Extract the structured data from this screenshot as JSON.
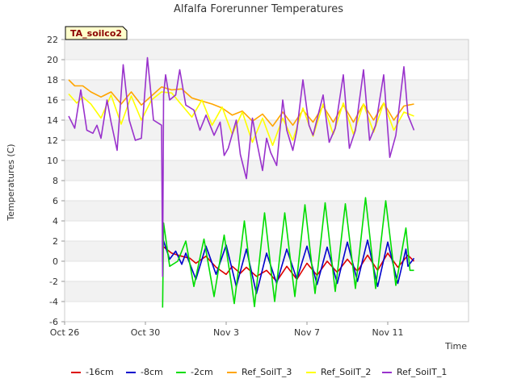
{
  "chart_data": {
    "type": "line",
    "title": "Alfalfa Forerunner Temperatures",
    "badge": "TA_soilco2",
    "xlabel": "Time",
    "ylabel": "Temperatures (C)",
    "ylim": [
      -6,
      22
    ],
    "yticks": [
      -6,
      -4,
      -2,
      0,
      2,
      4,
      6,
      8,
      10,
      12,
      14,
      16,
      18,
      20,
      22
    ],
    "xlim": [
      0,
      20
    ],
    "xticks": [
      {
        "x": 0,
        "label": "Oct 26"
      },
      {
        "x": 4,
        "label": "Oct 30"
      },
      {
        "x": 8,
        "label": "Nov 3"
      },
      {
        "x": 12,
        "label": "Nov 7"
      },
      {
        "x": 16,
        "label": "Nov 11"
      }
    ],
    "grid": "horizontal bands",
    "legend_position": "bottom",
    "series": [
      {
        "name": "-16cm",
        "color": "#dd0000",
        "start": 4.85,
        "end": 17.3,
        "points": [
          [
            4.85,
            1.5
          ],
          [
            5.3,
            0.8
          ],
          [
            5.8,
            0.5
          ],
          [
            6.2,
            0.3
          ],
          [
            6.5,
            -0.2
          ],
          [
            7.0,
            0.5
          ],
          [
            7.5,
            -0.6
          ],
          [
            8.0,
            -1.3
          ],
          [
            8.3,
            -0.5
          ],
          [
            8.7,
            -1.2
          ],
          [
            9.0,
            -0.6
          ],
          [
            9.5,
            -1.5
          ],
          [
            10.0,
            -0.9
          ],
          [
            10.5,
            -2.0
          ],
          [
            11.0,
            -0.5
          ],
          [
            11.5,
            -1.8
          ],
          [
            12.0,
            -0.2
          ],
          [
            12.5,
            -1.4
          ],
          [
            13.0,
            0.0
          ],
          [
            13.5,
            -1.1
          ],
          [
            14.0,
            0.2
          ],
          [
            14.5,
            -1.0
          ],
          [
            15.0,
            0.6
          ],
          [
            15.5,
            -0.9
          ],
          [
            16.0,
            0.8
          ],
          [
            16.5,
            -0.6
          ],
          [
            17.0,
            0.6
          ],
          [
            17.3,
            0.0
          ]
        ]
      },
      {
        "name": "-8cm",
        "color": "#0000cc",
        "start": 4.85,
        "end": 17.3,
        "points": [
          [
            4.85,
            2.3
          ],
          [
            5.2,
            0.2
          ],
          [
            5.5,
            1.0
          ],
          [
            5.8,
            -0.3
          ],
          [
            6.0,
            0.8
          ],
          [
            6.5,
            -1.8
          ],
          [
            7.0,
            1.5
          ],
          [
            7.5,
            -1.3
          ],
          [
            8.0,
            1.6
          ],
          [
            8.5,
            -2.5
          ],
          [
            9.0,
            1.2
          ],
          [
            9.5,
            -3.2
          ],
          [
            10.0,
            0.8
          ],
          [
            10.5,
            -2.2
          ],
          [
            11.0,
            1.2
          ],
          [
            11.5,
            -1.8
          ],
          [
            12.0,
            1.5
          ],
          [
            12.5,
            -2.3
          ],
          [
            13.0,
            1.4
          ],
          [
            13.5,
            -2.2
          ],
          [
            14.0,
            1.9
          ],
          [
            14.5,
            -2.0
          ],
          [
            15.0,
            2.1
          ],
          [
            15.5,
            -2.5
          ],
          [
            16.0,
            1.9
          ],
          [
            16.5,
            -2.2
          ],
          [
            16.9,
            1.2
          ],
          [
            17.0,
            -0.5
          ],
          [
            17.3,
            0.3
          ]
        ]
      },
      {
        "name": "-2cm",
        "color": "#00dd00",
        "start": 4.85,
        "end": 17.3,
        "points": [
          [
            4.85,
            -4.6
          ],
          [
            4.9,
            3.8
          ],
          [
            5.2,
            -0.5
          ],
          [
            5.6,
            0.0
          ],
          [
            6.0,
            2.0
          ],
          [
            6.4,
            -2.5
          ],
          [
            6.9,
            2.2
          ],
          [
            7.4,
            -3.5
          ],
          [
            7.9,
            2.6
          ],
          [
            8.4,
            -4.2
          ],
          [
            8.9,
            4.0
          ],
          [
            9.4,
            -4.5
          ],
          [
            9.9,
            4.8
          ],
          [
            10.4,
            -4.0
          ],
          [
            10.9,
            4.8
          ],
          [
            11.4,
            -3.5
          ],
          [
            11.9,
            5.6
          ],
          [
            12.4,
            -3.2
          ],
          [
            12.9,
            5.8
          ],
          [
            13.4,
            -3.0
          ],
          [
            13.9,
            5.7
          ],
          [
            14.4,
            -2.7
          ],
          [
            14.9,
            6.3
          ],
          [
            15.4,
            -2.7
          ],
          [
            15.9,
            6.0
          ],
          [
            16.4,
            -2.4
          ],
          [
            16.9,
            3.3
          ],
          [
            17.1,
            -0.9
          ],
          [
            17.3,
            -0.9
          ]
        ]
      },
      {
        "name": "Ref_SoilT_3",
        "color": "#ffa500",
        "start": 0.2,
        "end": 17.3,
        "points": [
          [
            0.2,
            18.0
          ],
          [
            0.5,
            17.4
          ],
          [
            0.9,
            17.4
          ],
          [
            1.3,
            16.8
          ],
          [
            1.8,
            16.3
          ],
          [
            2.3,
            16.8
          ],
          [
            2.8,
            15.6
          ],
          [
            3.3,
            16.8
          ],
          [
            3.8,
            15.5
          ],
          [
            4.3,
            16.4
          ],
          [
            4.8,
            17.3
          ],
          [
            5.3,
            17.0
          ],
          [
            5.8,
            17.1
          ],
          [
            6.3,
            16.2
          ],
          [
            6.8,
            15.9
          ],
          [
            7.3,
            15.6
          ],
          [
            7.8,
            15.2
          ],
          [
            8.3,
            14.5
          ],
          [
            8.8,
            14.9
          ],
          [
            9.3,
            13.9
          ],
          [
            9.8,
            14.6
          ],
          [
            10.3,
            13.4
          ],
          [
            10.8,
            14.8
          ],
          [
            11.3,
            13.5
          ],
          [
            11.8,
            15.0
          ],
          [
            12.3,
            13.8
          ],
          [
            12.8,
            15.4
          ],
          [
            13.3,
            13.8
          ],
          [
            13.8,
            15.5
          ],
          [
            14.3,
            13.8
          ],
          [
            14.8,
            15.6
          ],
          [
            15.3,
            14.0
          ],
          [
            15.8,
            15.7
          ],
          [
            16.3,
            14.0
          ],
          [
            16.8,
            15.4
          ],
          [
            17.3,
            15.6
          ]
        ]
      },
      {
        "name": "Ref_SoilT_2",
        "color": "#ffff00",
        "start": 0.2,
        "end": 17.3,
        "points": [
          [
            0.2,
            16.6
          ],
          [
            0.6,
            15.7
          ],
          [
            0.9,
            16.3
          ],
          [
            1.3,
            15.6
          ],
          [
            1.8,
            14.2
          ],
          [
            2.3,
            16.5
          ],
          [
            2.8,
            13.6
          ],
          [
            3.3,
            16.4
          ],
          [
            3.8,
            14.0
          ],
          [
            4.3,
            16.0
          ],
          [
            4.8,
            16.8
          ],
          [
            5.3,
            16.7
          ],
          [
            5.8,
            15.5
          ],
          [
            6.3,
            14.3
          ],
          [
            6.8,
            16.0
          ],
          [
            7.3,
            13.5
          ],
          [
            7.8,
            15.3
          ],
          [
            8.3,
            12.6
          ],
          [
            8.8,
            14.8
          ],
          [
            9.3,
            11.8
          ],
          [
            9.8,
            14.2
          ],
          [
            10.3,
            11.5
          ],
          [
            10.8,
            14.2
          ],
          [
            11.3,
            12.0
          ],
          [
            11.8,
            15.2
          ],
          [
            12.3,
            12.4
          ],
          [
            12.8,
            15.6
          ],
          [
            13.3,
            12.6
          ],
          [
            13.8,
            15.7
          ],
          [
            14.3,
            12.6
          ],
          [
            14.8,
            15.6
          ],
          [
            15.3,
            12.8
          ],
          [
            15.8,
            15.7
          ],
          [
            16.3,
            13.0
          ],
          [
            16.8,
            14.8
          ],
          [
            17.3,
            14.4
          ]
        ]
      },
      {
        "name": "Ref_SoilT_1",
        "color": "#9932cc",
        "start": 0.2,
        "end": 17.3,
        "points": [
          [
            0.2,
            14.4
          ],
          [
            0.5,
            13.2
          ],
          [
            0.8,
            17.0
          ],
          [
            1.1,
            13.0
          ],
          [
            1.4,
            12.7
          ],
          [
            1.6,
            13.5
          ],
          [
            1.8,
            12.2
          ],
          [
            2.1,
            16.0
          ],
          [
            2.3,
            13.8
          ],
          [
            2.6,
            11.0
          ],
          [
            2.9,
            19.5
          ],
          [
            3.2,
            14.0
          ],
          [
            3.5,
            12.0
          ],
          [
            3.8,
            12.2
          ],
          [
            4.1,
            20.2
          ],
          [
            4.4,
            14.0
          ],
          [
            4.8,
            13.5
          ],
          [
            4.85,
            -1.5
          ],
          [
            4.9,
            16.5
          ],
          [
            5.0,
            18.5
          ],
          [
            5.2,
            16.0
          ],
          [
            5.5,
            16.5
          ],
          [
            5.7,
            19.0
          ],
          [
            6.0,
            15.5
          ],
          [
            6.4,
            15.0
          ],
          [
            6.7,
            13.0
          ],
          [
            7.0,
            14.5
          ],
          [
            7.4,
            12.5
          ],
          [
            7.7,
            13.8
          ],
          [
            7.9,
            10.5
          ],
          [
            8.1,
            11.2
          ],
          [
            8.5,
            14.0
          ],
          [
            8.7,
            10.6
          ],
          [
            9.0,
            8.2
          ],
          [
            9.3,
            14.2
          ],
          [
            9.5,
            12.0
          ],
          [
            9.8,
            9.0
          ],
          [
            10.0,
            12.2
          ],
          [
            10.2,
            10.8
          ],
          [
            10.5,
            9.5
          ],
          [
            10.8,
            16.0
          ],
          [
            11.0,
            13.0
          ],
          [
            11.3,
            11.0
          ],
          [
            11.5,
            13.0
          ],
          [
            11.8,
            18.0
          ],
          [
            12.1,
            13.5
          ],
          [
            12.3,
            12.5
          ],
          [
            12.8,
            16.5
          ],
          [
            13.1,
            11.8
          ],
          [
            13.4,
            13.2
          ],
          [
            13.8,
            18.5
          ],
          [
            14.1,
            11.2
          ],
          [
            14.4,
            13.0
          ],
          [
            14.8,
            19.0
          ],
          [
            15.1,
            12.0
          ],
          [
            15.4,
            13.5
          ],
          [
            15.8,
            18.5
          ],
          [
            16.1,
            10.3
          ],
          [
            16.4,
            12.5
          ],
          [
            16.8,
            19.3
          ],
          [
            17.0,
            14.5
          ],
          [
            17.3,
            13.0
          ]
        ]
      }
    ]
  }
}
